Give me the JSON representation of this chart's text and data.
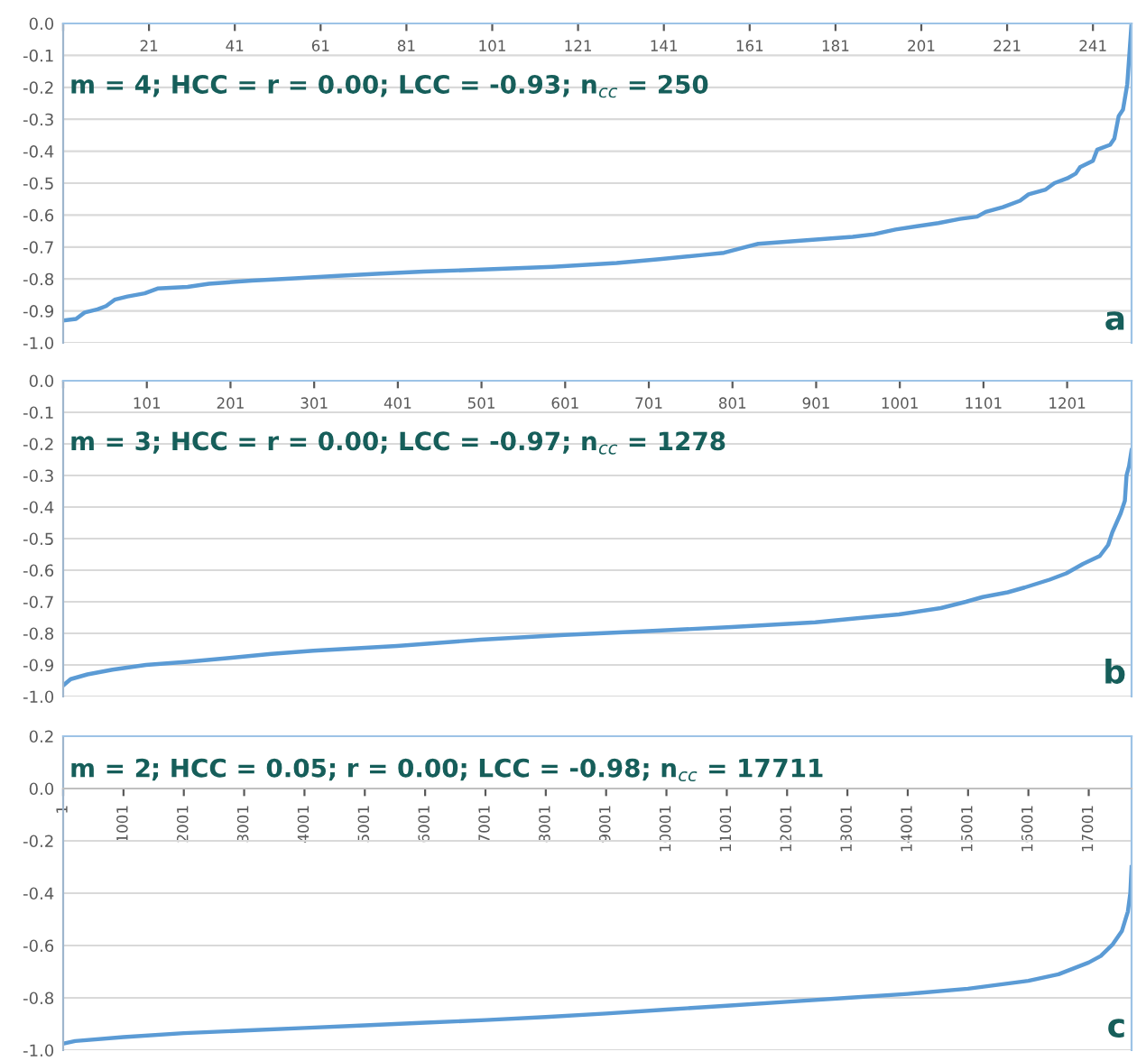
{
  "chart_data": [
    {
      "type": "line",
      "annotations": [
        "m = 4; HCC = r = 0.00; LCC = -0.93; n$_{cc}$ = 250",
        "a"
      ],
      "series": [
        {
          "color": "#5b9bd5",
          "x": [
            1,
            4,
            6,
            9,
            11,
            13,
            16,
            20,
            23,
            30,
            35,
            45,
            55,
            65,
            75,
            85,
            100,
            115,
            130,
            140,
            150,
            155,
            160,
            163,
            175,
            185,
            190,
            195,
            200,
            205,
            210,
            214,
            216,
            220,
            224,
            226,
            230,
            232,
            235,
            237,
            238,
            241,
            242,
            245,
            246,
            247,
            248,
            249,
            250
          ],
          "values": [
            -0.93,
            -0.925,
            -0.905,
            -0.895,
            -0.885,
            -0.865,
            -0.855,
            -0.845,
            -0.83,
            -0.825,
            -0.815,
            -0.805,
            -0.798,
            -0.79,
            -0.783,
            -0.777,
            -0.77,
            -0.762,
            -0.75,
            -0.738,
            -0.725,
            -0.718,
            -0.7,
            -0.69,
            -0.678,
            -0.668,
            -0.66,
            -0.645,
            -0.635,
            -0.625,
            -0.612,
            -0.605,
            -0.59,
            -0.575,
            -0.555,
            -0.535,
            -0.52,
            -0.5,
            -0.485,
            -0.47,
            -0.45,
            -0.43,
            -0.395,
            -0.38,
            -0.36,
            -0.29,
            -0.27,
            -0.19,
            0.0
          ]
        }
      ],
      "xlim": [
        1,
        250
      ],
      "xticks": [
        {
          "value": 1,
          "label": null
        },
        21,
        41,
        61,
        81,
        101,
        121,
        141,
        161,
        181,
        201,
        221,
        241
      ],
      "ylim": [
        -1.0,
        0.0
      ],
      "yticks": [
        {
          "value": -1.0,
          "label": "-1.0"
        },
        {
          "value": -0.9,
          "label": "-0.9"
        },
        {
          "value": -0.8,
          "label": "-0.8"
        },
        {
          "value": -0.7,
          "label": "-0.7"
        },
        {
          "value": -0.6,
          "label": "-0.6"
        },
        {
          "value": -0.5,
          "label": "-0.5"
        },
        {
          "value": -0.4,
          "label": "-0.4"
        },
        {
          "value": -0.3,
          "label": "-0.3"
        },
        {
          "value": -0.2,
          "label": "-0.2"
        },
        {
          "value": -0.1,
          "label": "-0.1"
        },
        {
          "value": 0.0,
          "label": "0.0"
        }
      ],
      "grid": "y",
      "marker": "none",
      "line_style": "solid"
    },
    {
      "type": "line",
      "annotations": [
        "m = 3; HCC = r = 0.00; LCC = -0.97; n$_{cc}$ = 1278",
        "b"
      ],
      "series": [
        {
          "color": "#5b9bd5",
          "x": [
            1,
            10,
            30,
            60,
            100,
            150,
            200,
            250,
            300,
            400,
            500,
            600,
            700,
            800,
            900,
            950,
            1000,
            1050,
            1080,
            1100,
            1130,
            1150,
            1180,
            1200,
            1220,
            1240,
            1250,
            1255,
            1260,
            1265,
            1270,
            1272,
            1275,
            1278
          ],
          "values": [
            -0.965,
            -0.945,
            -0.93,
            -0.915,
            -0.9,
            -0.89,
            -0.878,
            -0.865,
            -0.855,
            -0.84,
            -0.82,
            -0.805,
            -0.793,
            -0.78,
            -0.765,
            -0.752,
            -0.74,
            -0.72,
            -0.7,
            -0.685,
            -0.67,
            -0.655,
            -0.63,
            -0.61,
            -0.58,
            -0.555,
            -0.52,
            -0.48,
            -0.45,
            -0.42,
            -0.38,
            -0.3,
            -0.27,
            -0.22
          ]
        }
      ],
      "xlim": [
        1,
        1278
      ],
      "xticks": [
        {
          "value": 1,
          "label": null
        },
        101,
        201,
        301,
        401,
        501,
        601,
        701,
        801,
        901,
        1001,
        1101,
        1201
      ],
      "ylim": [
        -1.0,
        0.0
      ],
      "yticks": [
        {
          "value": -1.0,
          "label": "-1.0"
        },
        {
          "value": -0.9,
          "label": "-0.9"
        },
        {
          "value": -0.8,
          "label": "-0.8"
        },
        {
          "value": -0.7,
          "label": "-0.7"
        },
        {
          "value": -0.6,
          "label": "-0.6"
        },
        {
          "value": -0.5,
          "label": "-0.5"
        },
        {
          "value": -0.4,
          "label": "-0.4"
        },
        {
          "value": -0.3,
          "label": "-0.3"
        },
        {
          "value": -0.2,
          "label": "-0.2"
        },
        {
          "value": -0.1,
          "label": "-0.1"
        },
        {
          "value": 0.0,
          "label": "0.0"
        }
      ],
      "grid": "y",
      "marker": "none",
      "line_style": "solid"
    },
    {
      "type": "line",
      "annotations": [
        "m = 2; HCC = 0.05; r = 0.00; LCC = -0.98; n$_{cc}$ = 17711",
        "c"
      ],
      "series": [
        {
          "color": "#5b9bd5",
          "x": [
            1,
            200,
            1000,
            2000,
            3000,
            4000,
            5000,
            6000,
            7000,
            8000,
            9000,
            10000,
            11000,
            12000,
            13000,
            14000,
            15000,
            16000,
            16500,
            17000,
            17200,
            17400,
            17550,
            17650,
            17690,
            17711
          ],
          "values": [
            -0.975,
            -0.965,
            -0.95,
            -0.935,
            -0.925,
            -0.915,
            -0.905,
            -0.895,
            -0.885,
            -0.873,
            -0.86,
            -0.845,
            -0.83,
            -0.815,
            -0.8,
            -0.785,
            -0.765,
            -0.735,
            -0.71,
            -0.665,
            -0.64,
            -0.595,
            -0.545,
            -0.47,
            -0.4,
            -0.3
          ]
        }
      ],
      "xlim": [
        1,
        17711
      ],
      "xticks": [
        1,
        1001,
        2001,
        3001,
        4001,
        5001,
        6001,
        7001,
        8001,
        9001,
        10001,
        11001,
        12001,
        13001,
        14001,
        15001,
        16001,
        17001
      ],
      "ylim": [
        -1.0,
        0.2
      ],
      "yticks": [
        {
          "value": -1.0,
          "label": "-1.0"
        },
        {
          "value": -0.8,
          "label": "-0.8"
        },
        {
          "value": -0.6,
          "label": "-0.6"
        },
        {
          "value": -0.4,
          "label": "-0.4"
        },
        {
          "value": -0.2,
          "label": "-0.2"
        },
        {
          "value": 0.0,
          "label": "0.0"
        },
        {
          "value": 0.2,
          "label": "0.2"
        }
      ],
      "grid": "y",
      "marker": "none",
      "line_style": "solid"
    }
  ]
}
